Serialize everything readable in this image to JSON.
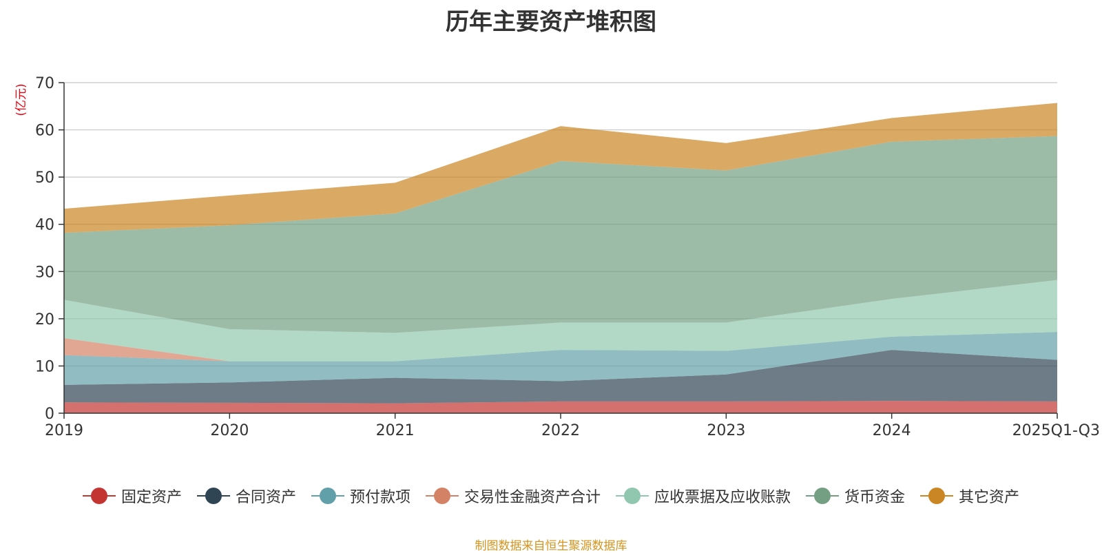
{
  "chart_data": {
    "type": "area",
    "stacked": true,
    "title": "历年主要资产堆积图",
    "ylabel": "(亿元)",
    "xlabel": "",
    "ylim": [
      0,
      70
    ],
    "yticks": [
      0,
      10,
      20,
      30,
      40,
      50,
      60,
      70
    ],
    "grid": true,
    "legend_position": "bottom",
    "categories": [
      "2019",
      "2020",
      "2021",
      "2022",
      "2023",
      "2024",
      "2025Q1-Q3"
    ],
    "series": [
      {
        "name": "固定资产",
        "color": "#c23531",
        "values": [
          2.3,
          2.2,
          2.1,
          2.5,
          2.5,
          2.6,
          2.5
        ]
      },
      {
        "name": "合同资产",
        "color": "#2f4554",
        "values": [
          3.7,
          4.3,
          5.4,
          4.3,
          5.7,
          10.8,
          8.8
        ]
      },
      {
        "name": "预付款项",
        "color": "#61a0a8",
        "values": [
          6.3,
          4.5,
          3.5,
          6.6,
          5.0,
          2.8,
          5.9
        ]
      },
      {
        "name": "交易性金融资产合计",
        "color": "#d48265",
        "values": [
          3.6,
          0.0,
          0.0,
          0.0,
          0.0,
          0.0,
          0.0
        ]
      },
      {
        "name": "应收票据及应收账款",
        "color": "#91c7ae",
        "values": [
          8.1,
          6.8,
          6.0,
          5.8,
          6.0,
          8.0,
          11.0
        ]
      },
      {
        "name": "货币资金",
        "color": "#749f83",
        "values": [
          14.2,
          22.0,
          25.3,
          34.2,
          32.2,
          33.3,
          30.5
        ]
      },
      {
        "name": "其它资产",
        "color": "#ca8622",
        "values": [
          5.1,
          6.3,
          6.5,
          7.4,
          5.8,
          5.0,
          7.0
        ]
      }
    ]
  },
  "source_note": "制图数据来自恒生聚源数据库"
}
